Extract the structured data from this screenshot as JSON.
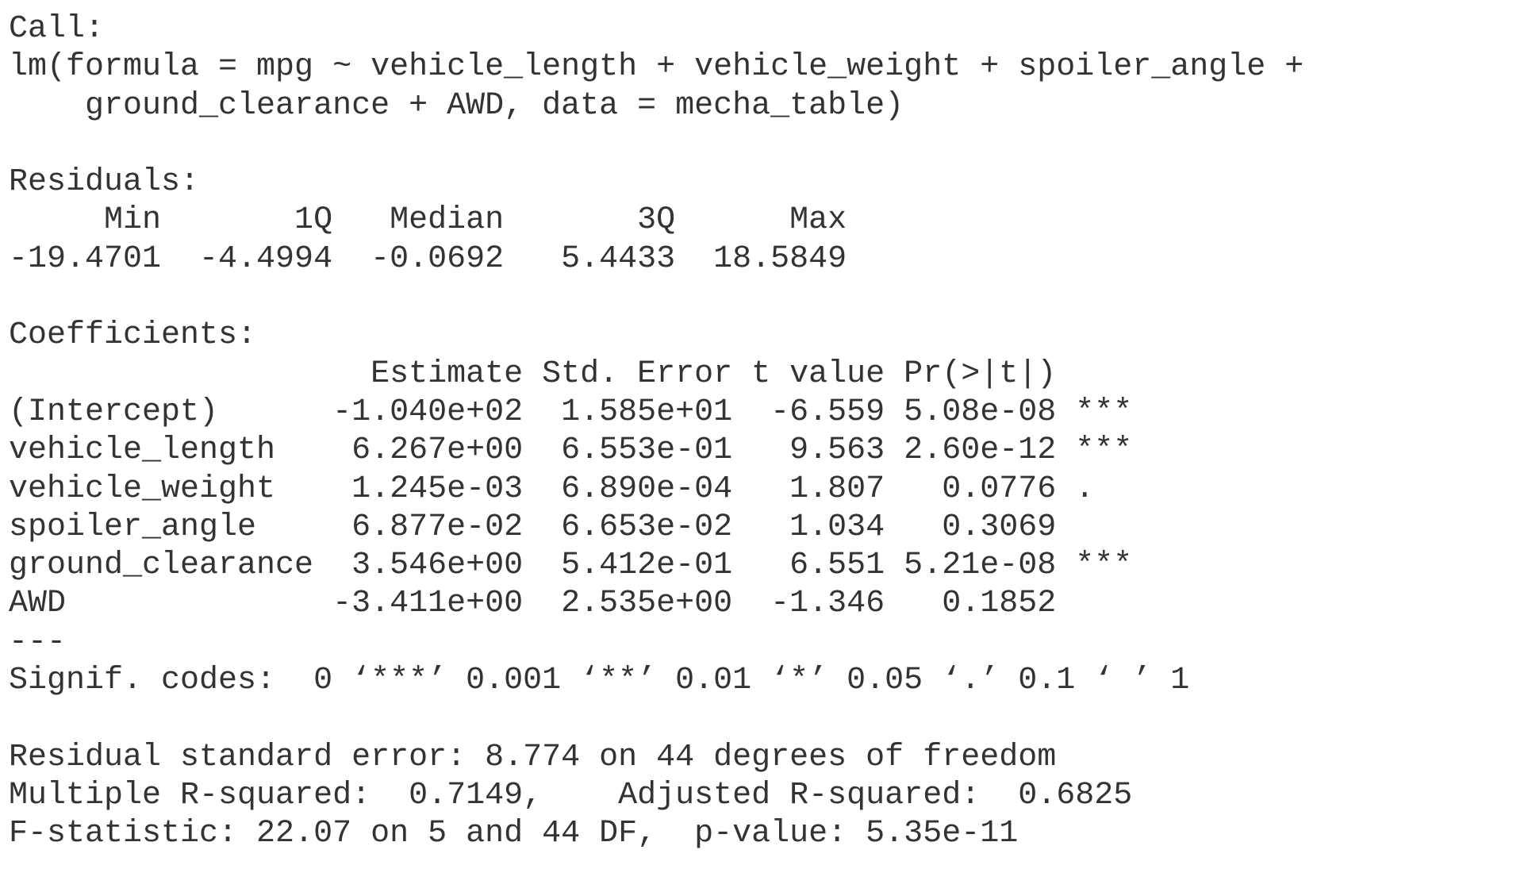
{
  "call": {
    "label": "Call:",
    "lines": [
      "lm(formula = mpg ~ vehicle_length + vehicle_weight + spoiler_angle + ",
      "    ground_clearance + AWD, data = mecha_table)"
    ]
  },
  "residuals": {
    "label": "Residuals:",
    "lines": [
      "     Min       1Q   Median       3Q      Max",
      "-19.4701  -4.4994  -0.0692   5.4433  18.5849"
    ]
  },
  "coefficients": {
    "label": "Coefficients:",
    "lines": [
      "                   Estimate Std. Error t value Pr(>|t|)",
      "(Intercept)      -1.040e+02  1.585e+01  -6.559 5.08e-08 ***",
      "vehicle_length    6.267e+00  6.553e-01   9.563 2.60e-12 ***",
      "vehicle_weight    1.245e-03  6.890e-04   1.807   0.0776 .",
      "spoiler_angle     6.877e-02  6.653e-02   1.034   0.3069",
      "ground_clearance  3.546e+00  5.412e-01   6.551 5.21e-08 ***",
      "AWD              -3.411e+00  2.535e+00  -1.346   0.1852",
      "---",
      "Signif. codes:  0 ‘***’ 0.001 ‘**’ 0.01 ‘*’ 0.05 ‘.’ 0.1 ‘ ’ 1"
    ]
  },
  "summary": {
    "lines": [
      "Residual standard error: 8.774 on 44 degrees of freedom",
      "Multiple R-squared:  0.7149,\tAdjusted R-squared:  0.6825 ",
      "F-statistic: 22.07 on 5 and 44 DF,  p-value: 5.35e-11"
    ]
  }
}
